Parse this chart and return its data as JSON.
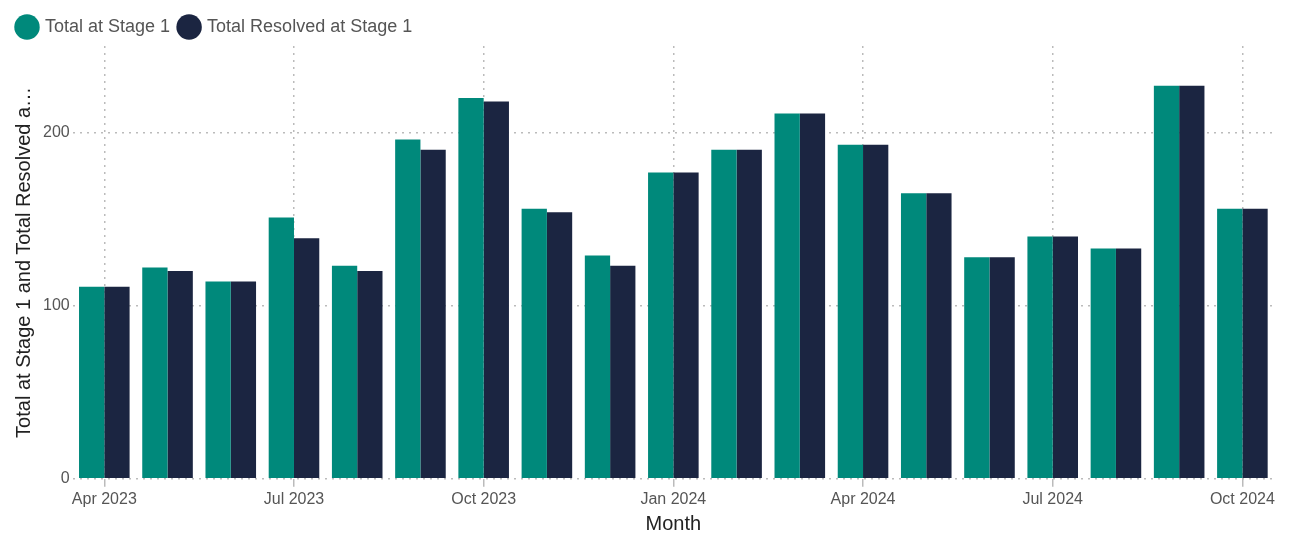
{
  "chart_data": {
    "type": "bar",
    "xlabel": "Month",
    "ylabel": "Total at Stage 1 and Total Resolved a…",
    "categories": [
      "Apr 2023",
      null,
      null,
      "Jul 2023",
      null,
      null,
      "Oct 2023",
      null,
      null,
      "Jan 2024",
      null,
      null,
      "Apr 2024",
      null,
      null,
      "Jul 2024",
      null,
      null,
      "Oct 2024"
    ],
    "series": [
      {
        "name": "Total at Stage 1",
        "color": "#00897b",
        "values": [
          111,
          122,
          114,
          151,
          123,
          196,
          220,
          156,
          129,
          177,
          190,
          211,
          193,
          165,
          128,
          140,
          133,
          227,
          156
        ]
      },
      {
        "name": "Total Resolved at Stage 1",
        "color": "#1b2541",
        "values": [
          111,
          120,
          114,
          139,
          120,
          190,
          218,
          154,
          123,
          177,
          190,
          211,
          193,
          165,
          128,
          140,
          133,
          227,
          156
        ]
      }
    ],
    "ylim": [
      0,
      250
    ],
    "yticks": [
      0,
      100,
      200
    ],
    "grid": true,
    "legend": "top left"
  }
}
